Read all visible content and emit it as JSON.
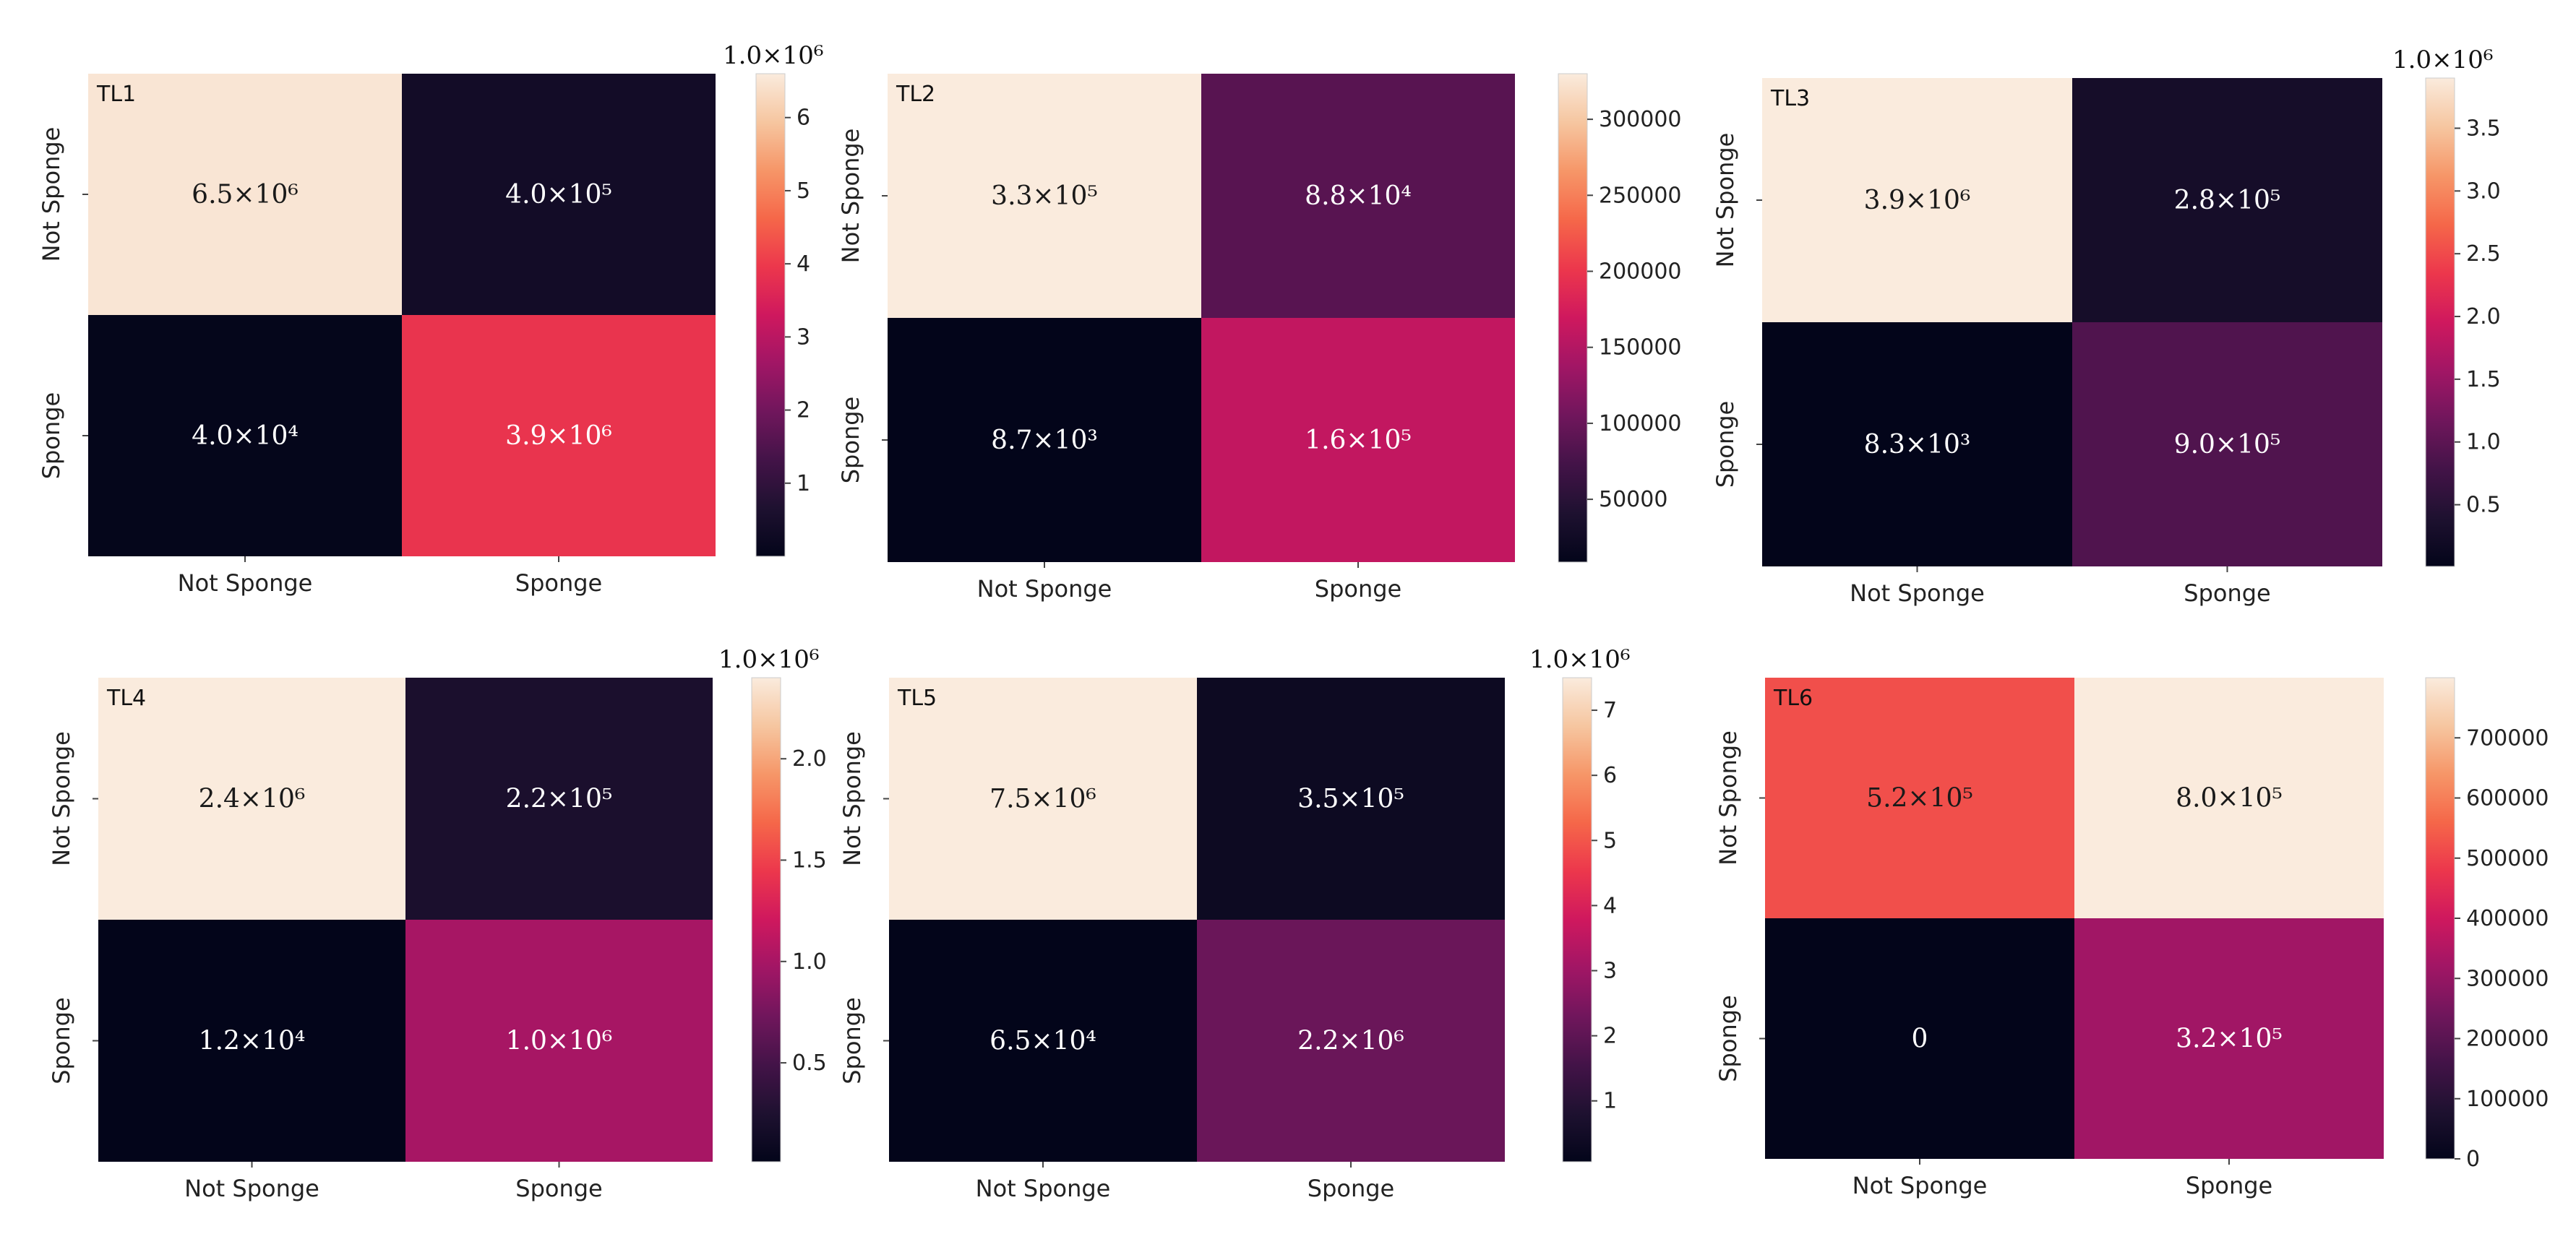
{
  "chart_data": [
    {
      "type": "heatmap",
      "title": "TL1",
      "x_categories": [
        "Not Sponge",
        "Sponge"
      ],
      "y_categories": [
        "Not Sponge",
        "Sponge"
      ],
      "values": [
        [
          6500000,
          400000
        ],
        [
          40000,
          3900000
        ]
      ],
      "cell_labels": [
        [
          "6.5×10⁶",
          "4.0×10⁵"
        ],
        [
          "4.0×10⁴",
          "3.9×10⁶"
        ]
      ],
      "colorbar": {
        "min": 0,
        "max": 6600000,
        "ticks": [
          1000000,
          2000000,
          3000000,
          4000000,
          5000000,
          6000000
        ],
        "tick_labels": [
          "1",
          "2",
          "3",
          "4",
          "5",
          "6"
        ],
        "scale_label": "1.0×10⁶"
      }
    },
    {
      "type": "heatmap",
      "title": "TL2",
      "x_categories": [
        "Not Sponge",
        "Sponge"
      ],
      "y_categories": [
        "Not Sponge",
        "Sponge"
      ],
      "values": [
        [
          330000,
          88000
        ],
        [
          8700,
          160000
        ]
      ],
      "cell_labels": [
        [
          "3.3×10⁵",
          "8.8×10⁴"
        ],
        [
          "8.7×10³",
          "1.6×10⁵"
        ]
      ],
      "colorbar": {
        "min": 8700,
        "max": 330000,
        "ticks": [
          50000,
          100000,
          150000,
          200000,
          250000,
          300000
        ],
        "tick_labels": [
          "50000",
          "100000",
          "150000",
          "200000",
          "250000",
          "300000"
        ],
        "scale_label": ""
      }
    },
    {
      "type": "heatmap",
      "title": "TL3",
      "x_categories": [
        "Not Sponge",
        "Sponge"
      ],
      "y_categories": [
        "Not Sponge",
        "Sponge"
      ],
      "values": [
        [
          3900000,
          280000
        ],
        [
          8300,
          900000
        ]
      ],
      "cell_labels": [
        [
          "3.9×10⁶",
          "2.8×10⁵"
        ],
        [
          "8.3×10³",
          "9.0×10⁵"
        ]
      ],
      "colorbar": {
        "min": 8300,
        "max": 3900000,
        "ticks": [
          500000,
          1000000,
          1500000,
          2000000,
          2500000,
          3000000,
          3500000
        ],
        "tick_labels": [
          "0.5",
          "1.0",
          "1.5",
          "2.0",
          "2.5",
          "3.0",
          "3.5"
        ],
        "scale_label": "1.0×10⁶"
      }
    },
    {
      "type": "heatmap",
      "title": "TL4",
      "x_categories": [
        "Not Sponge",
        "Sponge"
      ],
      "y_categories": [
        "Not Sponge",
        "Sponge"
      ],
      "values": [
        [
          2400000,
          220000
        ],
        [
          12000,
          1000000
        ]
      ],
      "cell_labels": [
        [
          "2.4×10⁶",
          "2.2×10⁵"
        ],
        [
          "1.2×10⁴",
          "1.0×10⁶"
        ]
      ],
      "colorbar": {
        "min": 12000,
        "max": 2400000,
        "ticks": [
          500000,
          1000000,
          1500000,
          2000000
        ],
        "tick_labels": [
          "0.5",
          "1.0",
          "1.5",
          "2.0"
        ],
        "scale_label": "1.0×10⁶"
      }
    },
    {
      "type": "heatmap",
      "title": "TL5",
      "x_categories": [
        "Not Sponge",
        "Sponge"
      ],
      "y_categories": [
        "Not Sponge",
        "Sponge"
      ],
      "values": [
        [
          7500000,
          350000
        ],
        [
          65000,
          2200000
        ]
      ],
      "cell_labels": [
        [
          "7.5×10⁶",
          "3.5×10⁵"
        ],
        [
          "6.5×10⁴",
          "2.2×10⁶"
        ]
      ],
      "colorbar": {
        "min": 65000,
        "max": 7500000,
        "ticks": [
          1000000,
          2000000,
          3000000,
          4000000,
          5000000,
          6000000,
          7000000
        ],
        "tick_labels": [
          "1",
          "2",
          "3",
          "4",
          "5",
          "6",
          "7"
        ],
        "scale_label": "1.0×10⁶"
      }
    },
    {
      "type": "heatmap",
      "title": "TL6",
      "x_categories": [
        "Not Sponge",
        "Sponge"
      ],
      "y_categories": [
        "Not Sponge",
        "Sponge"
      ],
      "values": [
        [
          520000,
          800000
        ],
        [
          0,
          320000
        ]
      ],
      "cell_labels": [
        [
          "5.2×10⁵",
          "8.0×10⁵"
        ],
        [
          "0",
          "3.2×10⁵"
        ]
      ],
      "colorbar": {
        "min": 0,
        "max": 800000,
        "ticks": [
          0,
          100000,
          200000,
          300000,
          400000,
          500000,
          600000,
          700000
        ],
        "tick_labels": [
          "0",
          "100000",
          "200000",
          "300000",
          "400000",
          "500000",
          "600000",
          "700000"
        ],
        "scale_label": ""
      }
    }
  ]
}
